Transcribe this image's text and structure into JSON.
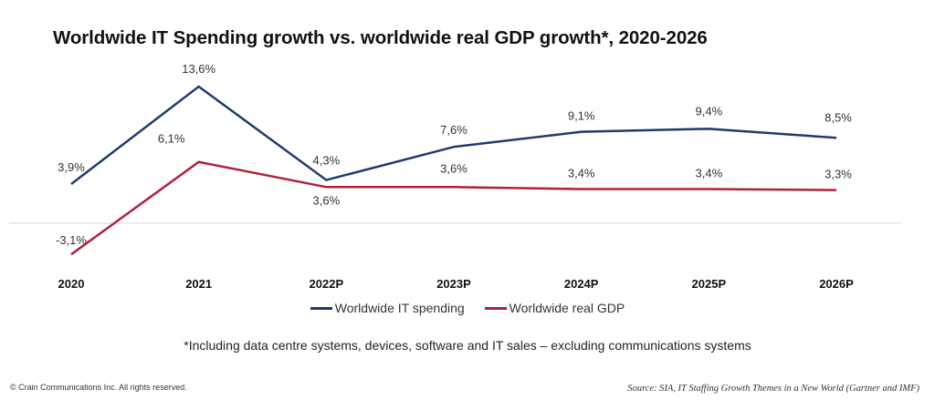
{
  "chart_data": {
    "type": "line",
    "title": "Worldwide IT Spending growth vs. worldwide real GDP growth*, 2020-2026",
    "xlabel": "",
    "ylabel": "",
    "categories": [
      "2020",
      "2021",
      "2022P",
      "2023P",
      "2024P",
      "2025P",
      "2026P"
    ],
    "series": [
      {
        "name": "Worldwide IT spending",
        "color": "#1f3a6e",
        "values": [
          3.9,
          13.6,
          4.3,
          7.6,
          9.1,
          9.4,
          8.5
        ],
        "labels": [
          "3,9%",
          "13,6%",
          "4,3%",
          "7,6%",
          "9,1%",
          "9,4%",
          "8,5%"
        ]
      },
      {
        "name": "Worldwide real GDP",
        "color": "#b0203f",
        "values": [
          -3.1,
          6.1,
          3.6,
          3.6,
          3.4,
          3.4,
          3.3
        ],
        "labels": [
          "-3,1%",
          "6,1%",
          "3,6%",
          "3,6%",
          "3,4%",
          "3,4%",
          "3,3%"
        ]
      }
    ],
    "ylim": [
      -4,
      14
    ],
    "grid": false,
    "zero_line": true,
    "legend_position": "bottom"
  },
  "footnote": "*Including data centre systems, devices, software and IT sales – excluding communications systems",
  "copyright": "© Crain Communications Inc. All rights reserved.",
  "source": "Source: SIA, IT Staffing Growth Themes in a New World (Gartner and IMF)"
}
